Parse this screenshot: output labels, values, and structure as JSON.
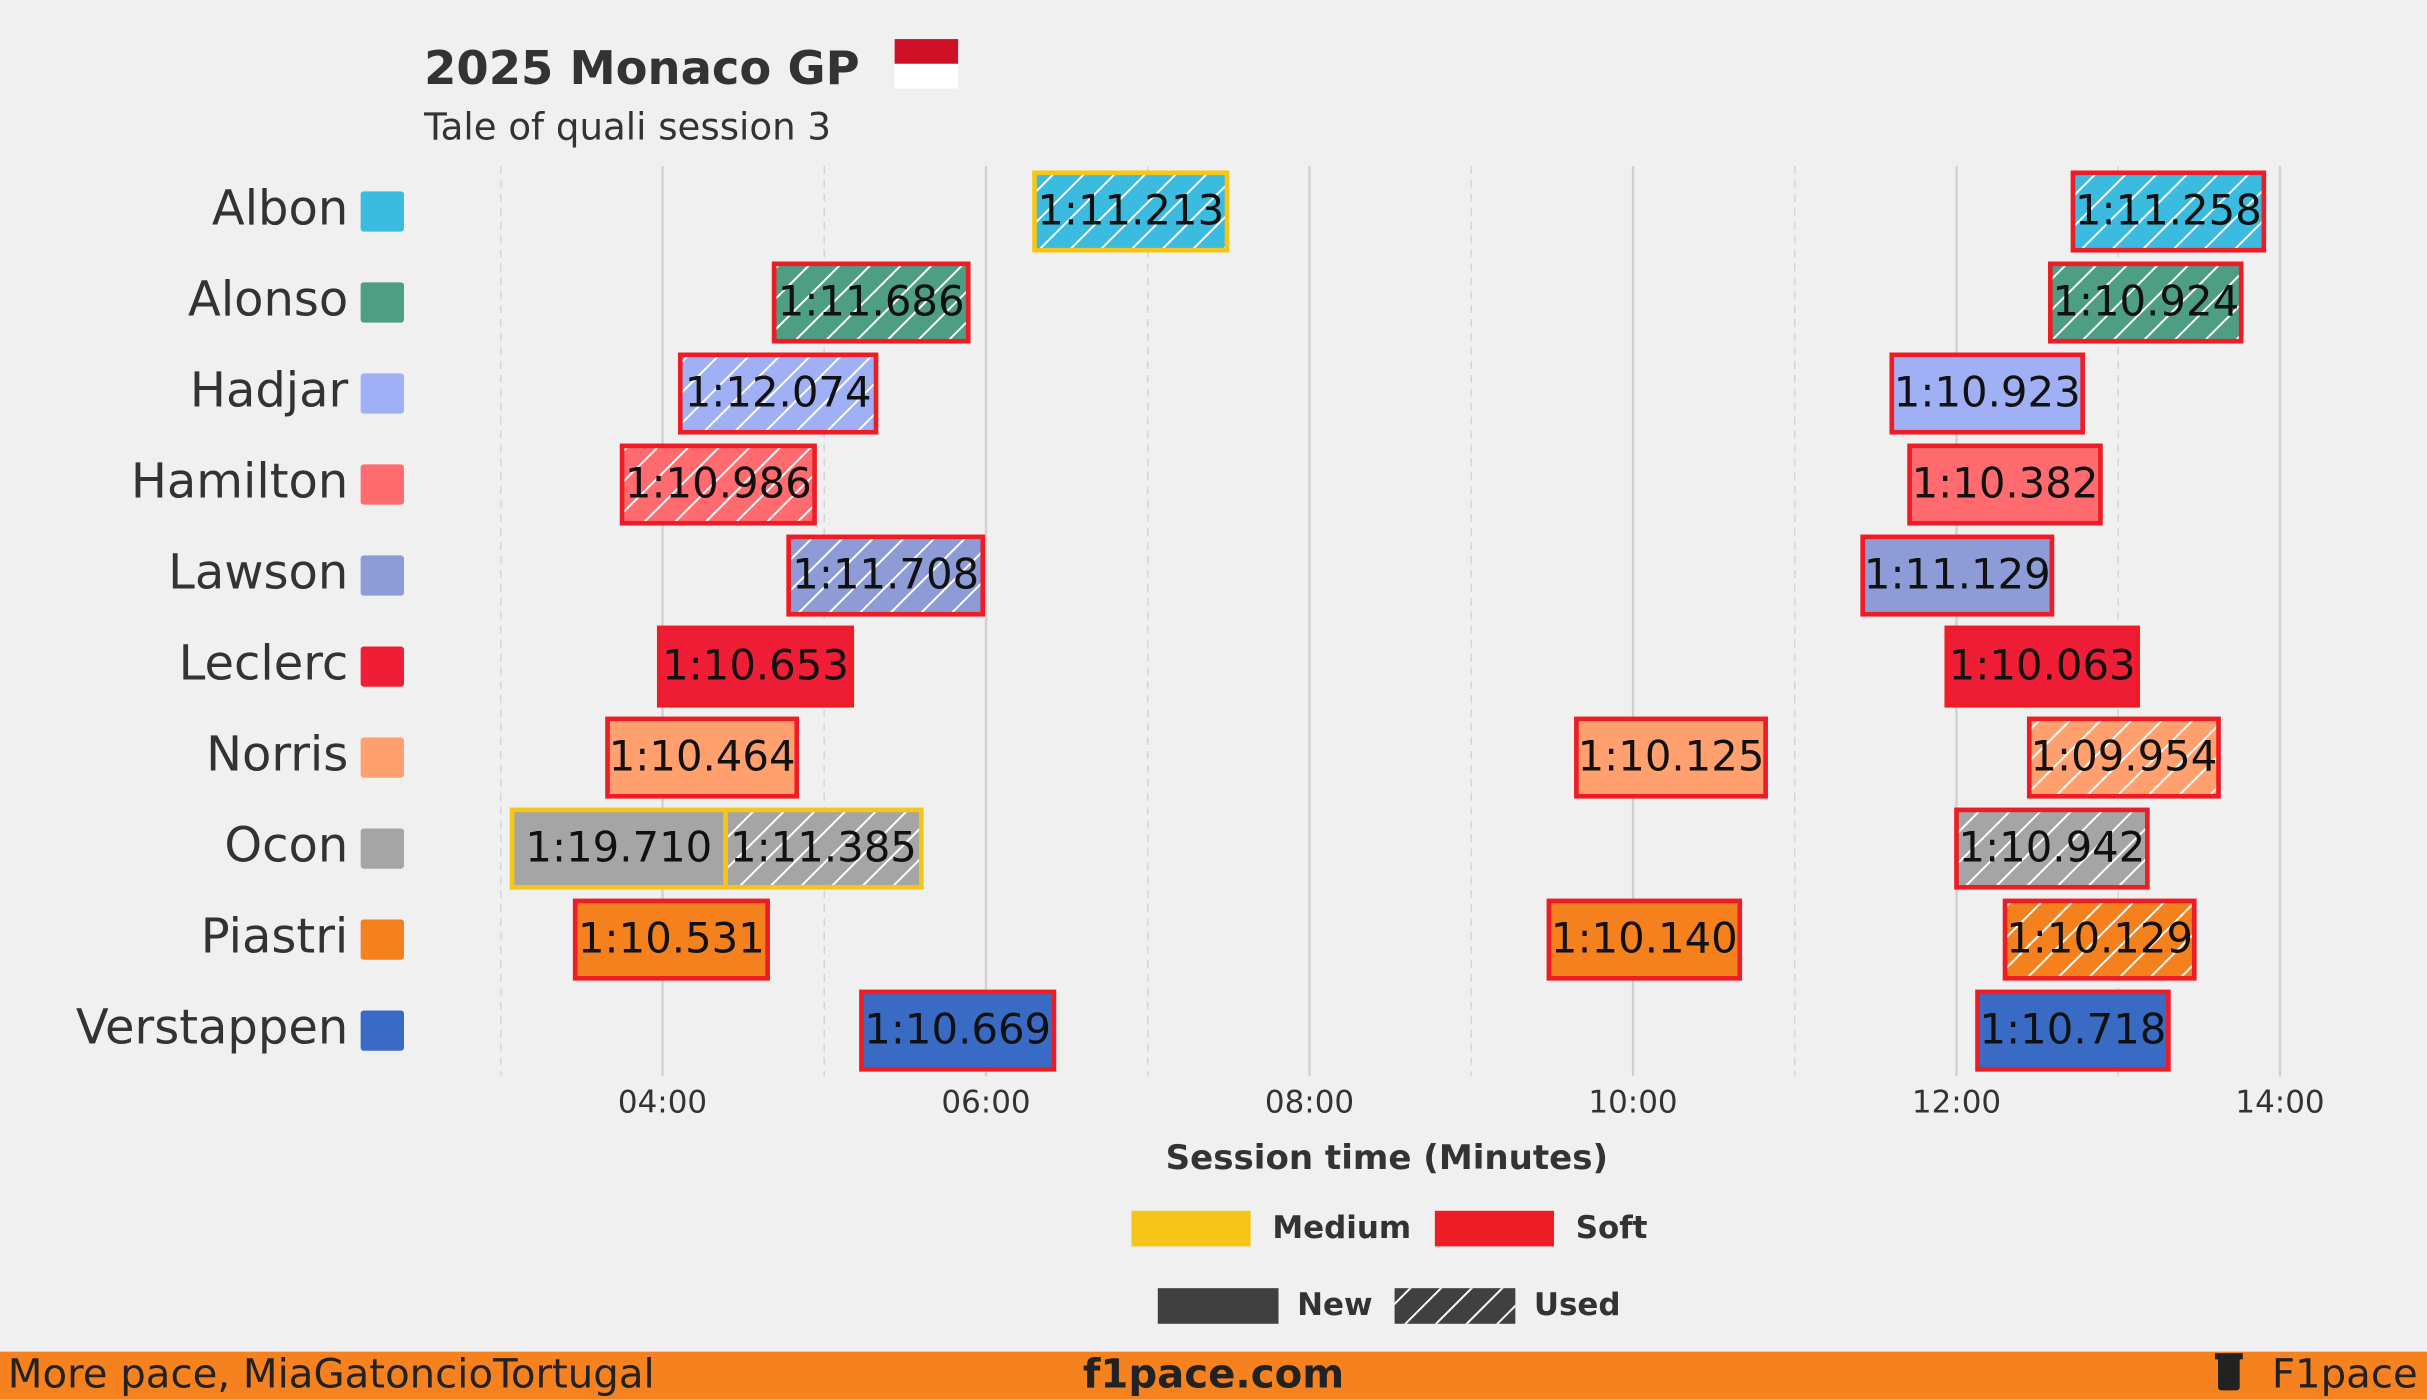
{
  "chart_data": {
    "type": "timeline",
    "title": "2025 Monaco GP",
    "subtitle": "Tale of quali session 3",
    "x_label": "Session time (Minutes)",
    "xlim": [
      2.95,
      14.35
    ],
    "xticks": [
      {
        "value": 4,
        "label": "04:00"
      },
      {
        "value": 6,
        "label": "06:00"
      },
      {
        "value": 8,
        "label": "08:00"
      },
      {
        "value": 10,
        "label": "10:00"
      },
      {
        "value": 12,
        "label": "12:00"
      },
      {
        "value": 14,
        "label": "14:00"
      }
    ],
    "minor_xticks": [
      3,
      5,
      7,
      9,
      11,
      13
    ],
    "grid": true,
    "compounds": [
      {
        "name": "Medium",
        "color": "#f5c518"
      },
      {
        "name": "Soft",
        "color": "#ee1c25"
      }
    ],
    "conditions": [
      {
        "name": "New",
        "hatch": false
      },
      {
        "name": "Used",
        "hatch": true
      }
    ],
    "drivers": [
      {
        "name": "Albon",
        "color": "#3cbbe0",
        "laps": [
          {
            "start": 6.3,
            "end": 7.49,
            "label": "1:11.213",
            "compound": 0,
            "condition": 1
          },
          {
            "start": 12.72,
            "end": 13.9,
            "label": "1:11.258",
            "compound": 1,
            "condition": 1
          }
        ]
      },
      {
        "name": "Alonso",
        "color": "#4d9e82",
        "laps": [
          {
            "start": 4.69,
            "end": 5.89,
            "label": "1:11.686",
            "compound": 1,
            "condition": 1
          },
          {
            "start": 12.58,
            "end": 13.76,
            "label": "1:10.924",
            "compound": 1,
            "condition": 1
          }
        ]
      },
      {
        "name": "Hadjar",
        "color": "#a0b0f5",
        "laps": [
          {
            "start": 4.11,
            "end": 5.32,
            "label": "1:12.074",
            "compound": 1,
            "condition": 1
          },
          {
            "start": 11.6,
            "end": 12.78,
            "label": "1:10.923",
            "compound": 1,
            "condition": 0
          }
        ]
      },
      {
        "name": "Hamilton",
        "color": "#ff6b6f",
        "laps": [
          {
            "start": 3.75,
            "end": 4.94,
            "label": "1:10.986",
            "compound": 1,
            "condition": 1
          },
          {
            "start": 11.71,
            "end": 12.89,
            "label": "1:10.382",
            "compound": 1,
            "condition": 0
          }
        ]
      },
      {
        "name": "Lawson",
        "color": "#8d9bd6",
        "laps": [
          {
            "start": 4.78,
            "end": 5.98,
            "label": "1:11.708",
            "compound": 1,
            "condition": 1
          },
          {
            "start": 11.42,
            "end": 12.59,
            "label": "1:11.129",
            "compound": 1,
            "condition": 0
          }
        ]
      },
      {
        "name": "Leclerc",
        "color": "#ef1e36",
        "laps": [
          {
            "start": 3.98,
            "end": 5.17,
            "label": "1:10.653",
            "compound": 1,
            "condition": 0
          },
          {
            "start": 11.94,
            "end": 13.12,
            "label": "1:10.063",
            "compound": 1,
            "condition": 0
          }
        ]
      },
      {
        "name": "Norris",
        "color": "#ffa06e",
        "laps": [
          {
            "start": 3.66,
            "end": 4.83,
            "label": "1:10.464",
            "compound": 1,
            "condition": 0
          },
          {
            "start": 9.65,
            "end": 10.82,
            "label": "1:10.125",
            "compound": 1,
            "condition": 0
          },
          {
            "start": 12.45,
            "end": 13.62,
            "label": "1:09.954",
            "compound": 1,
            "condition": 1
          }
        ]
      },
      {
        "name": "Ocon",
        "color": "#a5a5a5",
        "laps": [
          {
            "start": 3.07,
            "end": 4.39,
            "label": "1:19.710",
            "compound": 0,
            "condition": 0
          },
          {
            "start": 4.39,
            "end": 5.6,
            "label": "1:11.385",
            "compound": 0,
            "condition": 1
          },
          {
            "start": 12.0,
            "end": 13.18,
            "label": "1:10.942",
            "compound": 1,
            "condition": 1
          }
        ]
      },
      {
        "name": "Piastri",
        "color": "#f5801e",
        "laps": [
          {
            "start": 3.46,
            "end": 4.65,
            "label": "1:10.531",
            "compound": 1,
            "condition": 0
          },
          {
            "start": 9.48,
            "end": 10.66,
            "label": "1:10.140",
            "compound": 1,
            "condition": 0
          },
          {
            "start": 12.3,
            "end": 13.47,
            "label": "1:10.129",
            "compound": 1,
            "condition": 1
          }
        ]
      },
      {
        "name": "Verstappen",
        "color": "#3a6bc4",
        "laps": [
          {
            "start": 5.23,
            "end": 6.42,
            "label": "1:10.669",
            "compound": 1,
            "condition": 0
          },
          {
            "start": 12.13,
            "end": 13.31,
            "label": "1:10.718",
            "compound": 1,
            "condition": 0
          }
        ]
      }
    ]
  },
  "footer": {
    "left": "More pace, MiaGatoncioTortugal",
    "center": "f1pace.com",
    "right": "F1pace"
  }
}
